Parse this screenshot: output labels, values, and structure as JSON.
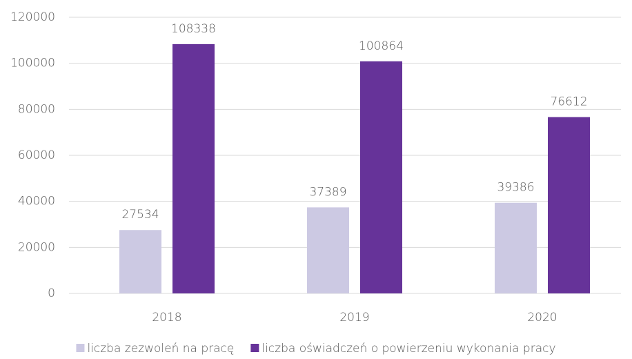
{
  "chart_data": {
    "type": "bar",
    "categories": [
      "2018",
      "2019",
      "2020"
    ],
    "series": [
      {
        "name": "liczba zezwoleń na pracę",
        "color": "#ccc9e3",
        "values": [
          27534,
          37389,
          39386
        ]
      },
      {
        "name": "liczba oświadczeń o powierzeniu wykonania pracy",
        "color": "#663399",
        "values": [
          108338,
          100864,
          76612
        ]
      }
    ],
    "ylim": [
      0,
      120000
    ],
    "yticks": [
      0,
      20000,
      40000,
      60000,
      80000,
      100000,
      120000
    ],
    "grid": true,
    "legend": "bottom"
  }
}
